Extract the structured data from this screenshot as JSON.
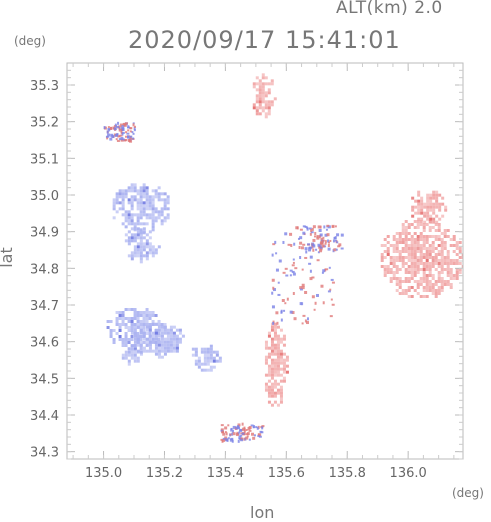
{
  "header": {
    "altitude_label": "ALT(km) 2.0",
    "datetime": "2020/09/17 15:41:01"
  },
  "chart_data": {
    "type": "heatmap",
    "xlabel": "lon",
    "ylabel": "lat",
    "xunit": "(deg)",
    "yunit": "(deg)",
    "xlim": [
      134.88,
      136.18
    ],
    "ylim": [
      34.28,
      35.36
    ],
    "x_ticks": [
      "135.0",
      "135.2",
      "135.4",
      "135.6",
      "135.8",
      "136.0"
    ],
    "y_ticks": [
      "34.3",
      "34.4",
      "34.5",
      "34.6",
      "34.7",
      "34.8",
      "34.9",
      "35.0",
      "35.1",
      "35.2",
      "35.3"
    ],
    "grid": false,
    "colors": {
      "approaching": "#a8b0f0",
      "receding": "#f0a0a0",
      "frame": "#bbbbbb"
    },
    "echo_regions": [
      {
        "sign": "neg",
        "lon": [
          135.02,
          135.22
        ],
        "lat": [
          34.9,
          35.04
        ]
      },
      {
        "sign": "neg",
        "lon": [
          135.06,
          135.18
        ],
        "lat": [
          34.82,
          34.92
        ]
      },
      {
        "sign": "neg",
        "lon": [
          135.0,
          135.2
        ],
        "lat": [
          34.58,
          34.7
        ]
      },
      {
        "sign": "neg",
        "lon": [
          135.08,
          135.26
        ],
        "lat": [
          34.56,
          34.66
        ]
      },
      {
        "sign": "neg",
        "lon": [
          135.28,
          135.38
        ],
        "lat": [
          34.52,
          34.6
        ]
      },
      {
        "sign": "neg",
        "lon": [
          135.05,
          135.12
        ],
        "lat": [
          34.54,
          34.6
        ]
      },
      {
        "sign": "pos",
        "lon": [
          135.48,
          135.56
        ],
        "lat": [
          35.21,
          35.34
        ]
      },
      {
        "sign": "pos",
        "lon": [
          135.52,
          135.6
        ],
        "lat": [
          34.42,
          34.66
        ]
      },
      {
        "sign": "pos",
        "lon": [
          135.9,
          136.18
        ],
        "lat": [
          34.72,
          34.94
        ]
      },
      {
        "sign": "pos",
        "lon": [
          136.0,
          136.12
        ],
        "lat": [
          34.92,
          35.02
        ]
      }
    ]
  }
}
